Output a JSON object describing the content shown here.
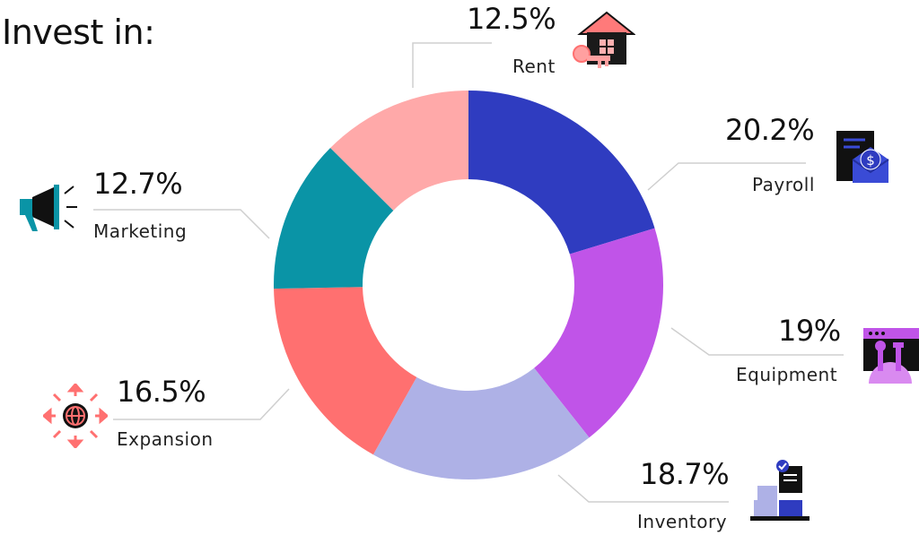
{
  "title": "Invest in:",
  "chart_data": {
    "type": "pie",
    "donut": true,
    "title": "Invest in:",
    "start_angle_deg": 0,
    "direction": "clockwise",
    "slices": [
      {
        "label": "Payroll",
        "value": 20.2,
        "value_label": "20.2%",
        "color": "#2f3cc0",
        "icon": "payroll-envelope-icon"
      },
      {
        "label": "Equipment",
        "value": 19,
        "value_label": "19%",
        "color": "#c054e8",
        "icon": "equipment-tools-icon"
      },
      {
        "label": "Inventory",
        "value": 18.7,
        "value_label": "18.7%",
        "color": "#aeb1e6",
        "icon": "inventory-boxes-icon"
      },
      {
        "label": "Expansion",
        "value": 16.5,
        "value_label": "16.5%",
        "color": "#ff7070",
        "icon": "expansion-globe-icon"
      },
      {
        "label": "Marketing",
        "value": 12.7,
        "value_label": "12.7%",
        "color": "#0a94a6",
        "icon": "megaphone-icon"
      },
      {
        "label": "Rent",
        "value": 12.5,
        "value_label": "12.5%",
        "color": "#ffa9a9",
        "icon": "house-key-icon"
      }
    ]
  }
}
